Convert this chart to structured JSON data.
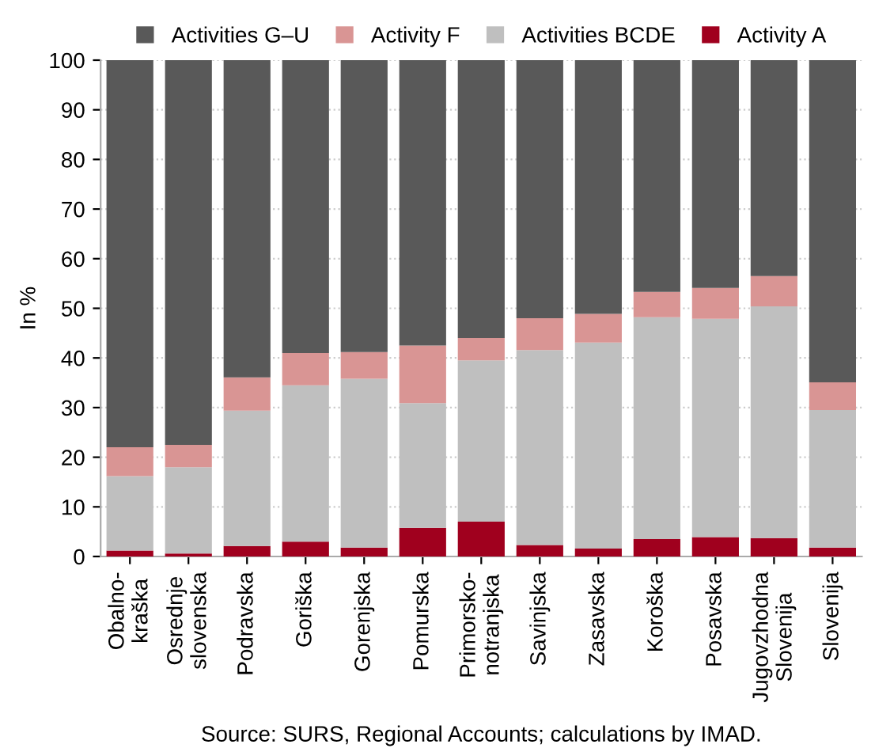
{
  "chart_data": {
    "type": "bar",
    "stacked": true,
    "ylabel": "In %",
    "ylim": [
      0,
      100
    ],
    "yticks": [
      0,
      10,
      20,
      30,
      40,
      50,
      60,
      70,
      80,
      90,
      100
    ],
    "grid": "y",
    "legend": "top",
    "categories": [
      "Obalno-\nkraška",
      "Osrednje\nslovenska",
      "Podravska",
      "Goriška",
      "Gorenjska",
      "Pomurska",
      "Primorsko-\nnotranjska",
      "Savinjska",
      "Zasavska",
      "Koroška",
      "Posavska",
      "Jugovzhodna\nSlovenija",
      "Slovenija"
    ],
    "series": [
      {
        "name": "Activity A",
        "color": "#a0001e",
        "values": [
          1.2,
          0.6,
          2.1,
          3.0,
          1.8,
          5.8,
          7.0,
          2.3,
          1.6,
          3.5,
          3.9,
          3.7,
          1.8
        ]
      },
      {
        "name": "Activities BCDE",
        "color": "#bfbfbf",
        "values": [
          15.0,
          17.4,
          27.3,
          31.5,
          34.0,
          25.1,
          32.5,
          39.3,
          41.5,
          44.7,
          44.0,
          46.7,
          27.7
        ]
      },
      {
        "name": "Activity F",
        "color": "#d99594",
        "values": [
          5.8,
          4.5,
          6.7,
          6.5,
          5.4,
          11.6,
          4.5,
          6.4,
          5.8,
          5.1,
          6.2,
          6.1,
          5.6
        ]
      },
      {
        "name": "Activities G–U",
        "color": "#595959",
        "values": [
          78.0,
          77.5,
          63.9,
          59.0,
          58.8,
          57.5,
          56.0,
          52.0,
          51.1,
          46.7,
          45.9,
          43.5,
          64.9
        ]
      }
    ],
    "annotations": [
      "Source: SURS, Regional Accounts; calculations by IMAD."
    ]
  }
}
